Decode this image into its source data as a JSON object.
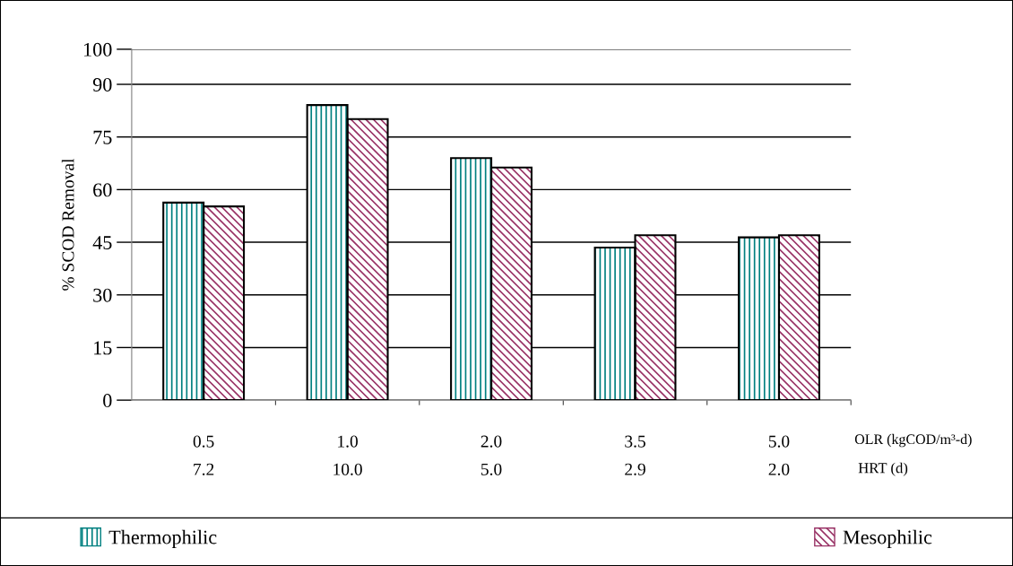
{
  "chart_data": {
    "type": "bar",
    "ylabel": "% SCOD Removal",
    "xlabel": "OLR (kgCOD/m³-d)",
    "annotations": [
      "HRT (d)"
    ],
    "categories": [
      "0.5\n7.2",
      "1.0\n10.0",
      "2.0\n5.0",
      "3.5\n2.9",
      "5.0\n2.0"
    ],
    "series": [
      {
        "name": "Thermophilic",
        "color": "#008080",
        "values": [
          56.3,
          84.1,
          69.0,
          43.5,
          46.4
        ]
      },
      {
        "name": "Mesophilic",
        "color": "#993366",
        "values": [
          55.2,
          80.1,
          66.3,
          47.0,
          47.0
        ]
      }
    ],
    "ylim": [
      0,
      100
    ],
    "yticks": [
      0,
      15,
      30,
      45,
      60,
      75,
      90,
      100
    ],
    "grid": "y",
    "legend": "bottom"
  }
}
